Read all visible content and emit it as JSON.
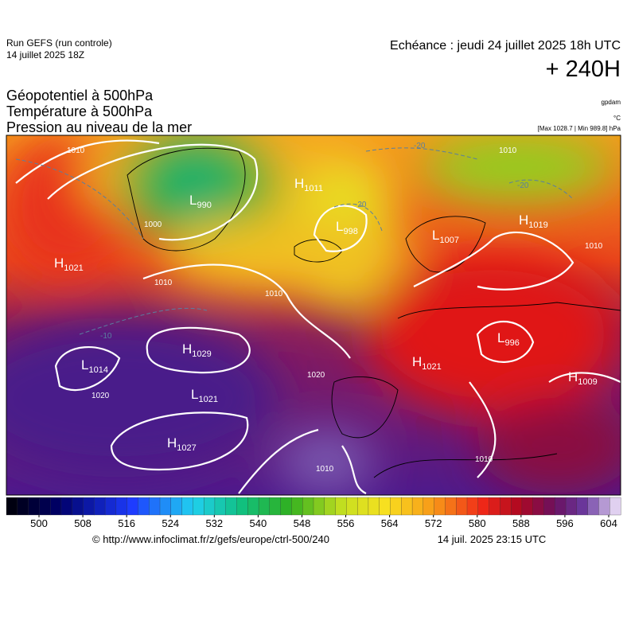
{
  "header": {
    "run": "Run GEFS (run controle)",
    "run_date": "14 juillet 2025 18Z",
    "valid": "Echéance : jeudi 24 juillet 2025 18h UTC",
    "lead": "+ 240H"
  },
  "fields": [
    "Géopotentiel à 500hPa",
    "Température à 500hPa",
    "Pression au niveau de la mer"
  ],
  "units": [
    "gpdam",
    "°C",
    "[Max 1028.7 | Min 989.8] hPa"
  ],
  "pressure_centers": [
    {
      "type": "H",
      "value": "1021"
    },
    {
      "type": "L",
      "value": "990"
    },
    {
      "type": "H",
      "value": "1011"
    },
    {
      "type": "L",
      "value": "998"
    },
    {
      "type": "L",
      "value": "1007"
    },
    {
      "type": "H",
      "value": "1019"
    },
    {
      "type": "H",
      "value": "1029"
    },
    {
      "type": "L",
      "value": "1014"
    },
    {
      "type": "L",
      "value": "1021"
    },
    {
      "type": "H",
      "value": "1027"
    },
    {
      "type": "L",
      "value": "996"
    },
    {
      "type": "H",
      "value": "1021"
    },
    {
      "type": "H",
      "value": "1009"
    }
  ],
  "isobar_labels": [
    "1010",
    "1010",
    "1000",
    "1010",
    "1010",
    "1020",
    "1020",
    "1010",
    "1010",
    "1010"
  ],
  "temperature_labels": [
    "-20",
    "-20",
    "-20",
    "-10"
  ],
  "colorbar": {
    "ticks": [
      500,
      508,
      516,
      524,
      532,
      540,
      548,
      556,
      564,
      572,
      580,
      588,
      596,
      604
    ]
  },
  "footer": {
    "url": "© http://www.infoclimat.fr/z/gefs/europe/ctrl-500/240",
    "time": "14 juil. 2025 23:15 UTC"
  }
}
